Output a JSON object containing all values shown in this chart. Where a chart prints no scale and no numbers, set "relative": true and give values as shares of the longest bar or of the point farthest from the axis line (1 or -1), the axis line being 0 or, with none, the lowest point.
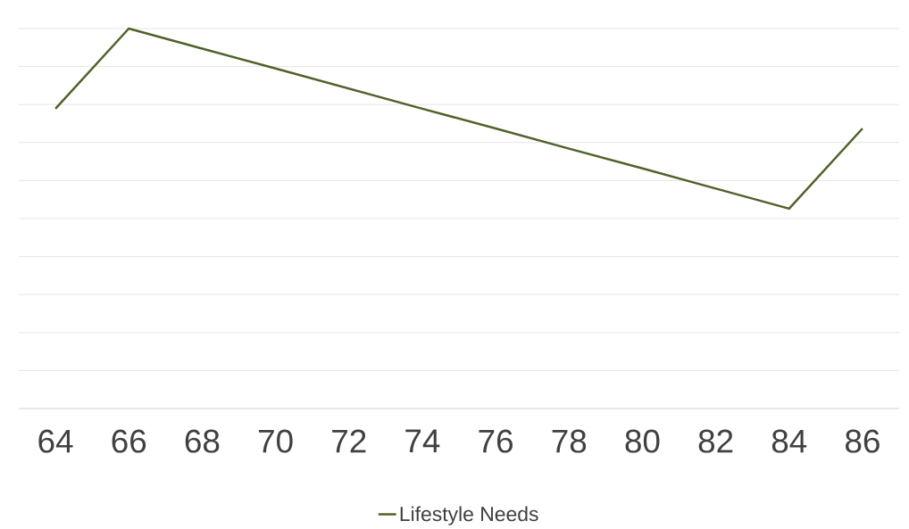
{
  "chart_data": {
    "type": "line",
    "relative": true,
    "grid": "y",
    "legend": "bottom",
    "categories": [
      "64",
      "66",
      "68",
      "70",
      "72",
      "74",
      "76",
      "78",
      "80",
      "82",
      "84",
      "86"
    ],
    "series": [
      {
        "name": "Lifestyle Needs",
        "color": "#4f6228",
        "values": [
          0.789,
          1,
          0.947,
          0.895,
          0.842,
          0.789,
          0.737,
          0.684,
          0.632,
          0.579,
          0.526,
          0.737
        ]
      }
    ]
  }
}
